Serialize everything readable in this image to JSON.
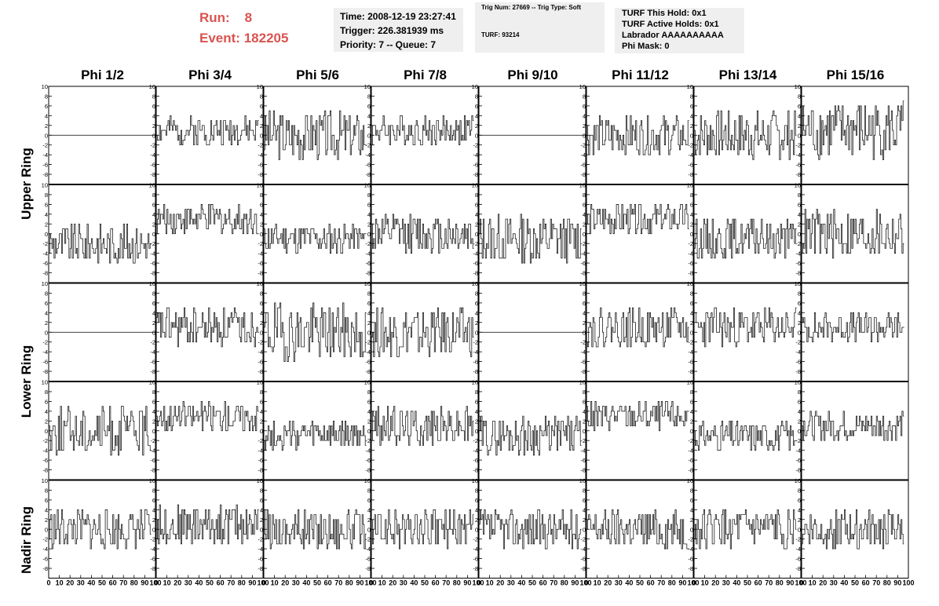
{
  "header": {
    "run_label": "Run:",
    "run_value": "8",
    "event_label": "Event:",
    "event_value": "182205"
  },
  "info1": {
    "time": "Time: 2008-12-19 23:27:41",
    "trigger": "Trigger: 226.381939 ms",
    "priority": "Priority: 7 -- Queue: 7"
  },
  "info2": {
    "trig": "Trig Num: 27669 -- Trig Type: Soft",
    "turf": "TURF: 93214"
  },
  "info3": {
    "hold": "TURF This Hold: 0x1",
    "active": "TURF Active Holds: 0x1",
    "labrador": "Labrador AAAAAAAAAA",
    "phimask": "Phi Mask: 0"
  },
  "columns": [
    "Phi 1/2",
    "Phi 3/4",
    "Phi 5/6",
    "Phi 7/8",
    "Phi 9/10",
    "Phi 11/12",
    "Phi 13/14",
    "Phi 15/16"
  ],
  "rows": [
    "Upper Ring",
    "Lower Ring",
    "Nadir Ring"
  ],
  "chart_data": {
    "type": "line",
    "xlim": [
      0,
      100
    ],
    "ylim": [
      -10,
      10
    ],
    "x_ticks": [
      0,
      10,
      20,
      30,
      40,
      50,
      60,
      70,
      80,
      90,
      100
    ],
    "y_ticks": [
      -8,
      -6,
      -4,
      -2,
      0,
      2,
      4,
      6,
      8,
      10
    ],
    "panel_rows": 5,
    "panel_cols": 8,
    "panels": [
      {
        "row": 0,
        "col": 0,
        "baseline": 0,
        "amp": 0,
        "seed": 1,
        "flat": true
      },
      {
        "row": 0,
        "col": 1,
        "baseline": 1,
        "amp": 3,
        "seed": 2
      },
      {
        "row": 0,
        "col": 2,
        "baseline": 0,
        "amp": 5,
        "seed": 3
      },
      {
        "row": 0,
        "col": 3,
        "baseline": 1,
        "amp": 3,
        "seed": 4
      },
      {
        "row": 0,
        "col": 4,
        "baseline": 0,
        "amp": 0,
        "seed": 5,
        "flat": true
      },
      {
        "row": 0,
        "col": 5,
        "baseline": 0,
        "amp": 4,
        "seed": 6
      },
      {
        "row": 0,
        "col": 6,
        "baseline": 0,
        "amp": 5,
        "seed": 7
      },
      {
        "row": 0,
        "col": 7,
        "baseline": 1,
        "amp": 6,
        "seed": 8
      },
      {
        "row": 1,
        "col": 0,
        "baseline": -2,
        "amp": 4,
        "seed": 9
      },
      {
        "row": 1,
        "col": 1,
        "baseline": 3,
        "amp": 3,
        "seed": 10
      },
      {
        "row": 1,
        "col": 2,
        "baseline": -1,
        "amp": 3,
        "seed": 11
      },
      {
        "row": 1,
        "col": 3,
        "baseline": 0,
        "amp": 4,
        "seed": 12
      },
      {
        "row": 1,
        "col": 4,
        "baseline": -1,
        "amp": 5,
        "seed": 13
      },
      {
        "row": 1,
        "col": 5,
        "baseline": 3,
        "amp": 3,
        "seed": 14
      },
      {
        "row": 1,
        "col": 6,
        "baseline": -1,
        "amp": 4,
        "seed": 15
      },
      {
        "row": 1,
        "col": 7,
        "baseline": 0,
        "amp": 5,
        "seed": 16
      },
      {
        "row": 2,
        "col": 0,
        "baseline": 0,
        "amp": 0,
        "seed": 17,
        "flat": true
      },
      {
        "row": 2,
        "col": 1,
        "baseline": 1,
        "amp": 4,
        "seed": 18
      },
      {
        "row": 2,
        "col": 2,
        "baseline": 0,
        "amp": 6,
        "seed": 19
      },
      {
        "row": 2,
        "col": 3,
        "baseline": 0,
        "amp": 5,
        "seed": 20
      },
      {
        "row": 2,
        "col": 4,
        "baseline": 0,
        "amp": 0,
        "seed": 21,
        "flat": true
      },
      {
        "row": 2,
        "col": 5,
        "baseline": 1,
        "amp": 4,
        "seed": 22
      },
      {
        "row": 2,
        "col": 6,
        "baseline": 1,
        "amp": 4,
        "seed": 23
      },
      {
        "row": 2,
        "col": 7,
        "baseline": 1,
        "amp": 3,
        "seed": 24
      },
      {
        "row": 3,
        "col": 0,
        "baseline": 0,
        "amp": 5,
        "seed": 25
      },
      {
        "row": 3,
        "col": 1,
        "baseline": 3,
        "amp": 3,
        "seed": 26
      },
      {
        "row": 3,
        "col": 2,
        "baseline": -1,
        "amp": 3,
        "seed": 27
      },
      {
        "row": 3,
        "col": 3,
        "baseline": 1,
        "amp": 4,
        "seed": 28
      },
      {
        "row": 3,
        "col": 4,
        "baseline": -1,
        "amp": 4,
        "seed": 29
      },
      {
        "row": 3,
        "col": 5,
        "baseline": 3,
        "amp": 3,
        "seed": 30
      },
      {
        "row": 3,
        "col": 6,
        "baseline": -1,
        "amp": 3,
        "seed": 31
      },
      {
        "row": 3,
        "col": 7,
        "baseline": 1,
        "amp": 3,
        "seed": 32
      },
      {
        "row": 4,
        "col": 0,
        "baseline": 0,
        "amp": 4,
        "seed": 33
      },
      {
        "row": 4,
        "col": 1,
        "baseline": 1,
        "amp": 4,
        "seed": 34
      },
      {
        "row": 4,
        "col": 2,
        "baseline": 0,
        "amp": 4,
        "seed": 35
      },
      {
        "row": 4,
        "col": 3,
        "baseline": 0,
        "amp": 4,
        "seed": 36
      },
      {
        "row": 4,
        "col": 4,
        "baseline": 0,
        "amp": 4,
        "seed": 37
      },
      {
        "row": 4,
        "col": 5,
        "baseline": 0,
        "amp": 4,
        "seed": 38
      },
      {
        "row": 4,
        "col": 6,
        "baseline": 0,
        "amp": 4,
        "seed": 39
      },
      {
        "row": 4,
        "col": 7,
        "baseline": 0,
        "amp": 4,
        "seed": 40
      }
    ]
  }
}
